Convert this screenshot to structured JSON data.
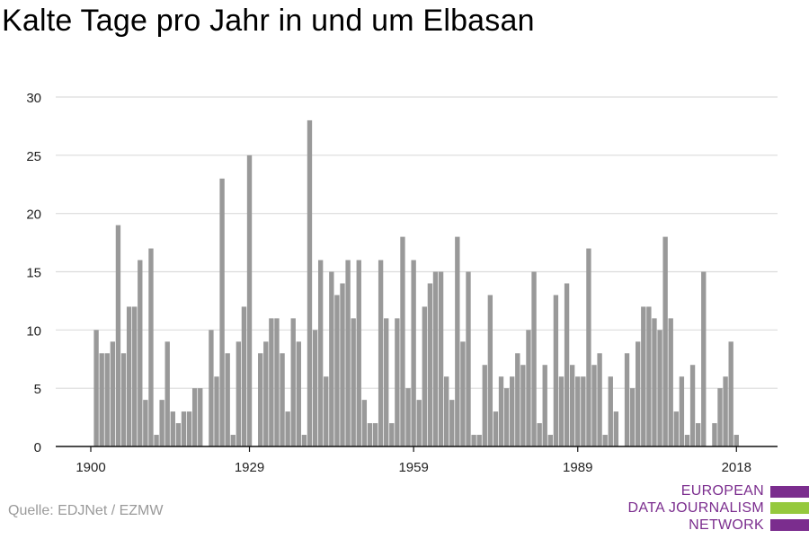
{
  "chart_data": {
    "type": "bar",
    "title": "Kalte Tage pro Jahr in und um Elbasan",
    "xlabel": "",
    "ylabel": "",
    "x_start": 1901,
    "x": [
      1901,
      1902,
      1903,
      1904,
      1905,
      1906,
      1907,
      1908,
      1909,
      1910,
      1911,
      1912,
      1913,
      1914,
      1915,
      1916,
      1917,
      1918,
      1919,
      1920,
      1921,
      1922,
      1923,
      1924,
      1925,
      1926,
      1927,
      1928,
      1929,
      1930,
      1931,
      1932,
      1933,
      1934,
      1935,
      1936,
      1937,
      1938,
      1939,
      1940,
      1941,
      1942,
      1943,
      1944,
      1945,
      1946,
      1947,
      1948,
      1949,
      1950,
      1951,
      1952,
      1953,
      1954,
      1955,
      1956,
      1957,
      1958,
      1959,
      1960,
      1961,
      1962,
      1963,
      1964,
      1965,
      1966,
      1967,
      1968,
      1969,
      1970,
      1971,
      1972,
      1973,
      1974,
      1975,
      1976,
      1977,
      1978,
      1979,
      1980,
      1981,
      1982,
      1983,
      1984,
      1985,
      1986,
      1987,
      1988,
      1989,
      1990,
      1991,
      1992,
      1993,
      1994,
      1995,
      1996,
      1997,
      1998,
      1999,
      2000,
      2001,
      2002,
      2003,
      2004,
      2005,
      2006,
      2007,
      2008,
      2009,
      2010,
      2011,
      2012,
      2013,
      2014,
      2015,
      2016,
      2017,
      2018
    ],
    "values": [
      10,
      8,
      8,
      9,
      19,
      8,
      12,
      12,
      16,
      4,
      17,
      1,
      4,
      9,
      3,
      2,
      3,
      3,
      5,
      5,
      0,
      10,
      6,
      23,
      8,
      1,
      9,
      12,
      25,
      0,
      8,
      9,
      11,
      11,
      8,
      3,
      11,
      9,
      1,
      28,
      10,
      16,
      6,
      15,
      13,
      14,
      16,
      11,
      16,
      4,
      2,
      2,
      16,
      11,
      2,
      11,
      18,
      5,
      16,
      4,
      12,
      14,
      15,
      15,
      6,
      4,
      18,
      9,
      15,
      1,
      1,
      7,
      13,
      3,
      6,
      5,
      6,
      8,
      7,
      10,
      15,
      2,
      7,
      1,
      13,
      6,
      14,
      7,
      6,
      6,
      17,
      7,
      8,
      1,
      6,
      3,
      0,
      8,
      5,
      9,
      12,
      12,
      11,
      10,
      18,
      11,
      3,
      6,
      1,
      7,
      2,
      15,
      0,
      2,
      5,
      6,
      9,
      1
    ],
    "xticks": [
      "1900",
      "1929",
      "1959",
      "1989",
      "2018"
    ],
    "xtick_years": [
      1900,
      1929,
      1959,
      1989,
      2018
    ],
    "yticks": [
      "0",
      "5",
      "10",
      "15",
      "20",
      "25",
      "30"
    ],
    "ylim": [
      0,
      30
    ],
    "xlim": [
      1900,
      2018
    ],
    "grid": "horizontal",
    "bar_color": "#999999",
    "source": "Quelle: EDJNet / EZMW"
  },
  "logo": {
    "lines": [
      "EUROPEAN",
      "DATA JOURNALISM",
      "NETWORK"
    ],
    "colors": [
      "#7b2d8e",
      "#95c93d",
      "#7b2d8e"
    ]
  }
}
